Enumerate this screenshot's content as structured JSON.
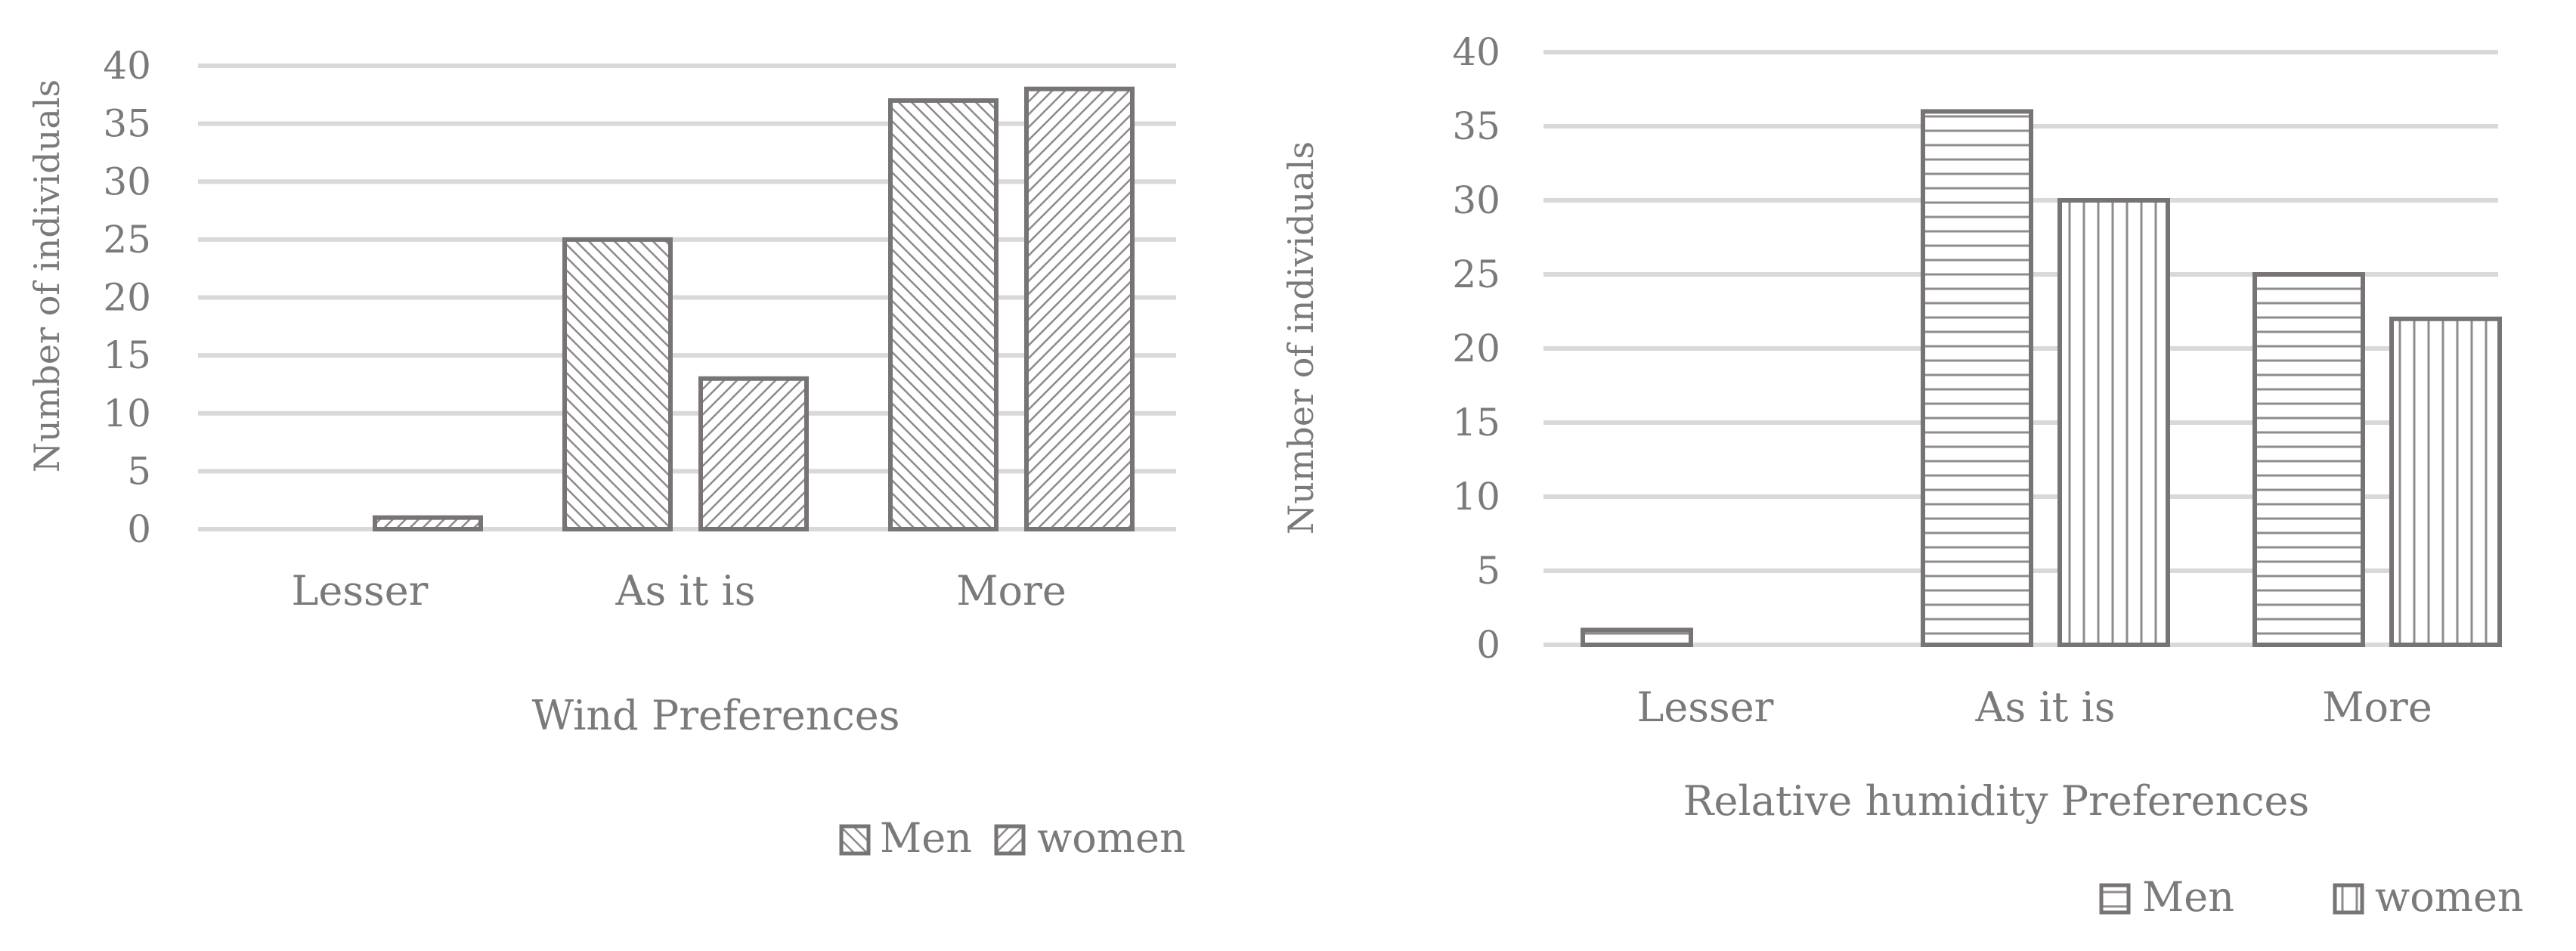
{
  "chart_data": [
    {
      "type": "bar",
      "categories": [
        "Lesser",
        "As it is",
        "More"
      ],
      "series": [
        {
          "name": "Men",
          "values": [
            0,
            25,
            37
          ]
        },
        {
          "name": "women",
          "values": [
            1,
            13,
            38
          ]
        }
      ],
      "xlabel": "Wind  Preferences",
      "ylabel": "Number of individuals",
      "ylim": [
        0,
        40
      ],
      "yticks": [
        0,
        5,
        10,
        15,
        20,
        25,
        30,
        35,
        40
      ],
      "grid": true,
      "legend": "bottom",
      "patterns": [
        "diagonal-dense",
        "diagonal-reverse"
      ]
    },
    {
      "type": "bar",
      "categories": [
        "Lesser",
        "As it is",
        "More"
      ],
      "series": [
        {
          "name": "Men",
          "values": [
            1,
            36,
            25
          ]
        },
        {
          "name": "women",
          "values": [
            0,
            30,
            22
          ]
        }
      ],
      "xlabel": "Relative humidity Preferences",
      "ylabel": "Number of individuals",
      "ylim": [
        0,
        40
      ],
      "yticks": [
        0,
        5,
        10,
        15,
        20,
        25,
        30,
        35,
        40
      ],
      "grid": true,
      "legend": "bottom-right",
      "patterns": [
        "horizontal-lines",
        "vertical-lines"
      ]
    }
  ],
  "colors": {
    "stroke": "#787474",
    "grid": "#d9d9d9",
    "text": "#7a7a7a"
  }
}
